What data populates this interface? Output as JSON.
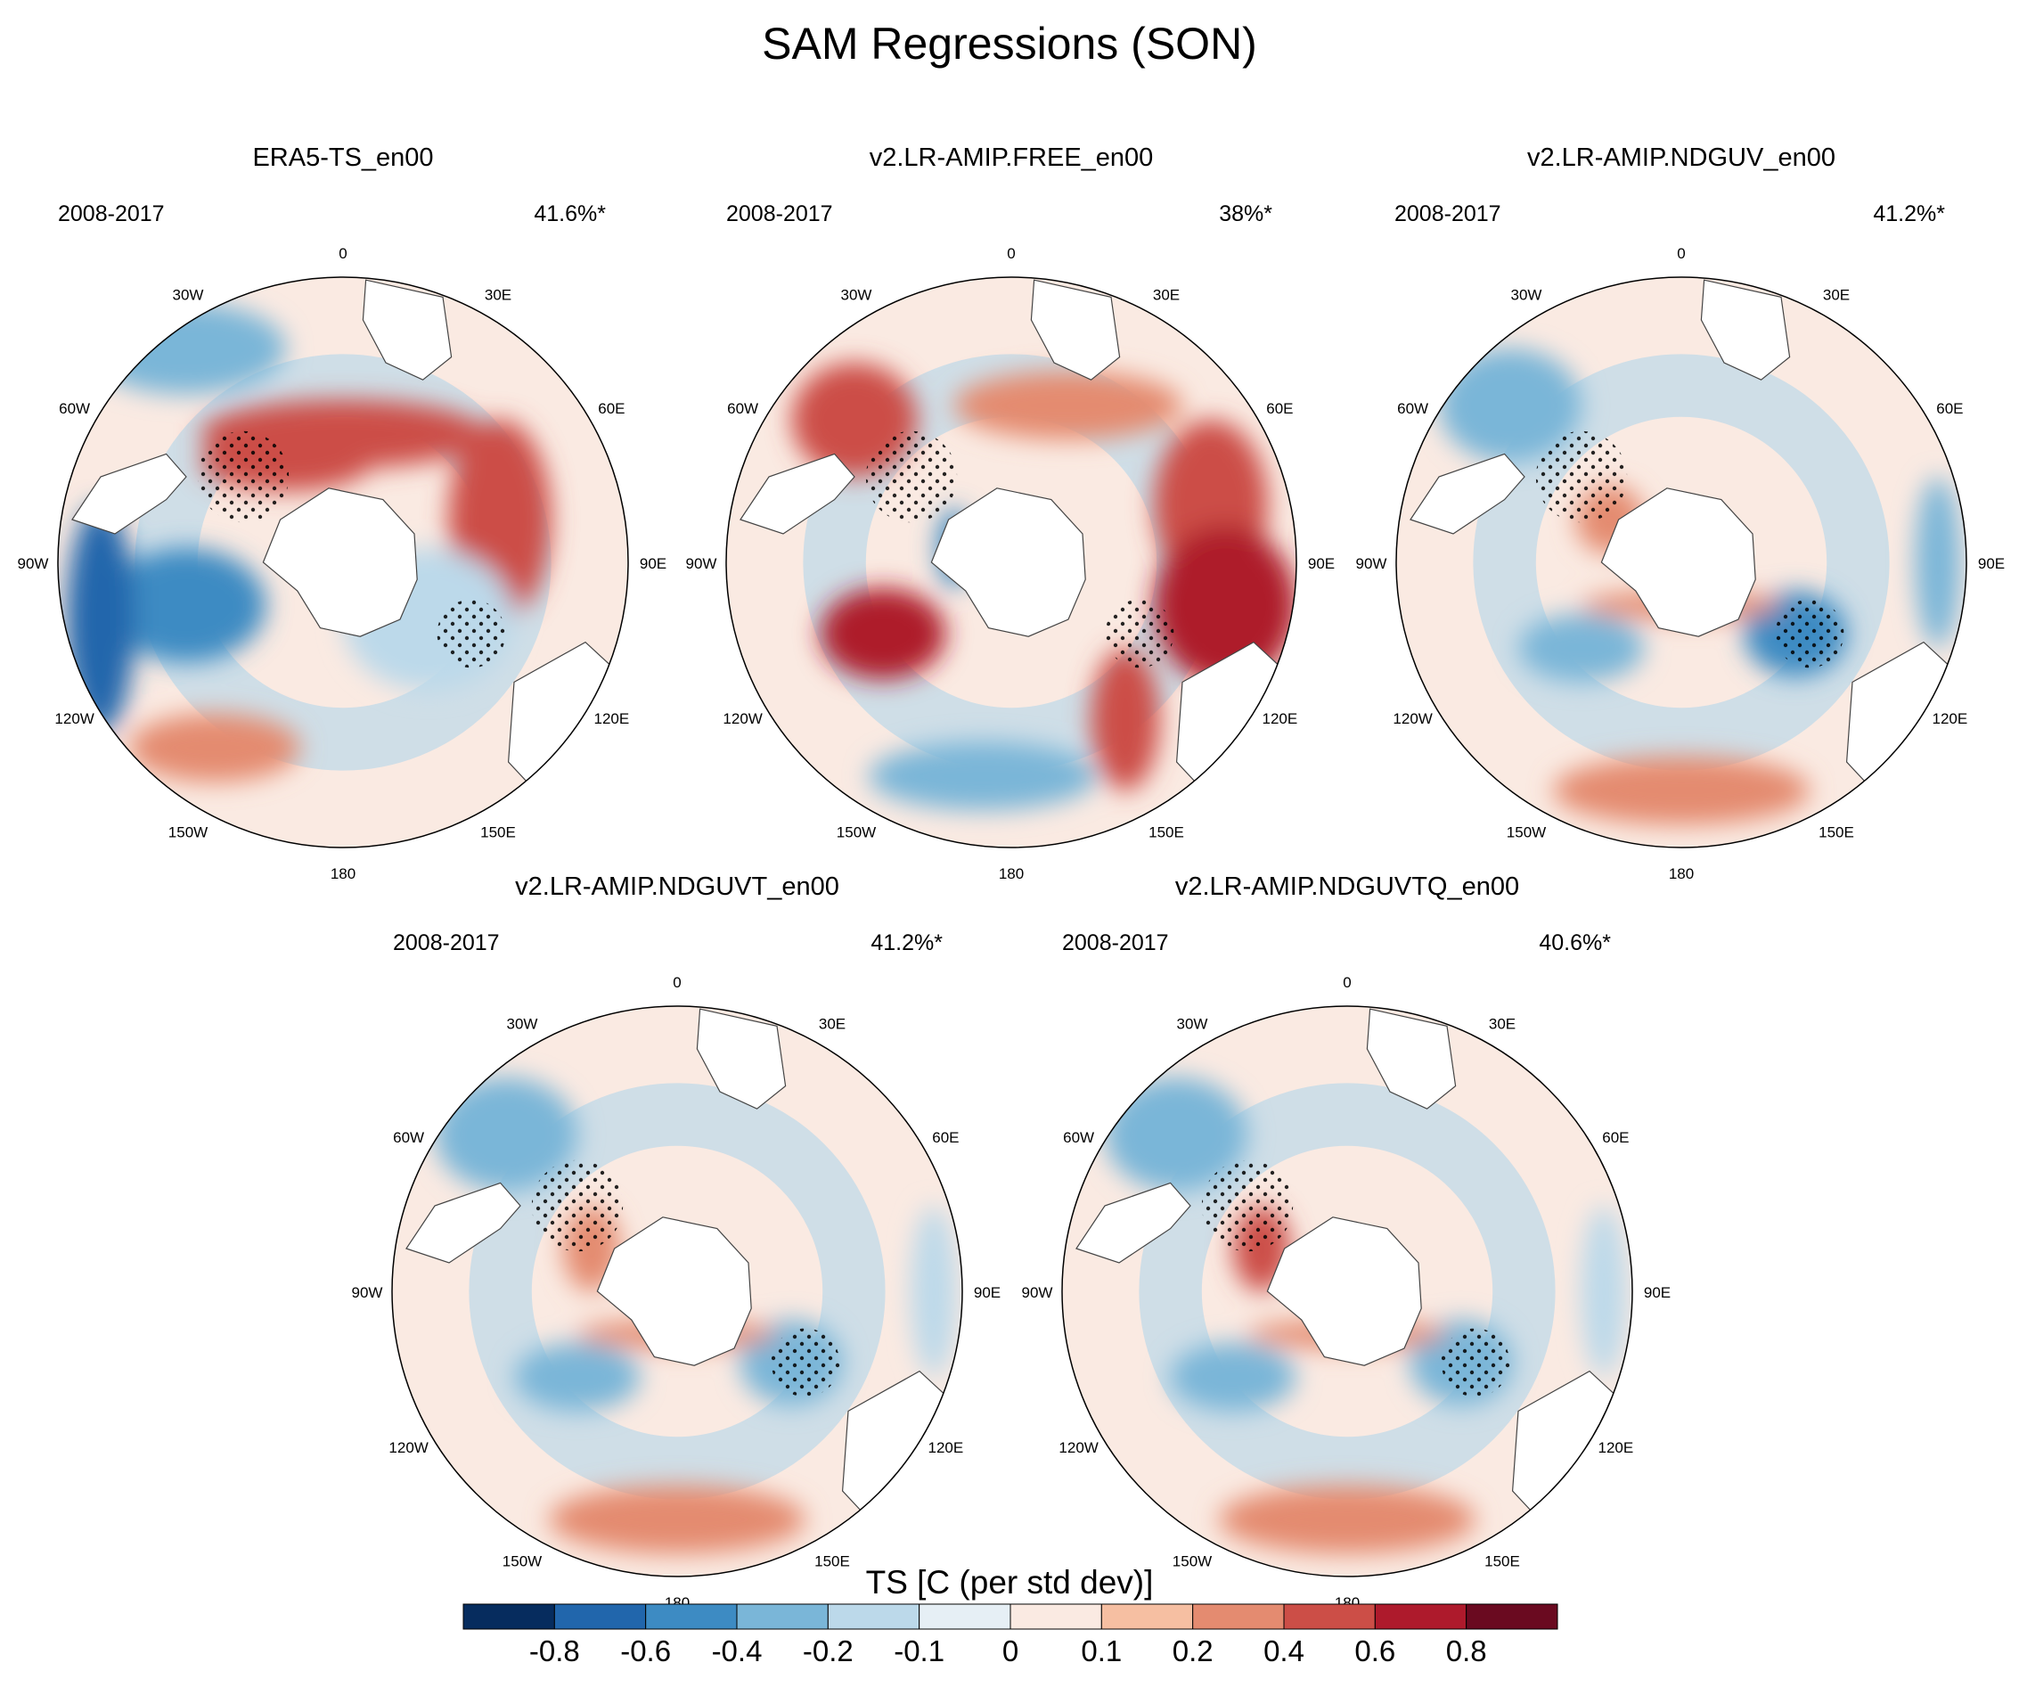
{
  "figure_title": "SAM Regressions (SON)",
  "panel_labels": {
    "lon_labels": [
      "0",
      "30E",
      "60E",
      "90E",
      "120E",
      "150E",
      "180",
      "150W",
      "120W",
      "90W",
      "60W",
      "30W"
    ]
  },
  "chart_data": [
    {
      "type": "heatmap",
      "projection": "south-polar-stereographic",
      "title": "ERA5-TS_en00",
      "period": "2008-2017",
      "variance_explained": "41.6%*",
      "significance_stippling": true
    },
    {
      "type": "heatmap",
      "projection": "south-polar-stereographic",
      "title": "v2.LR-AMIP.FREE_en00",
      "period": "2008-2017",
      "variance_explained": "38%*",
      "significance_stippling": true
    },
    {
      "type": "heatmap",
      "projection": "south-polar-stereographic",
      "title": "v2.LR-AMIP.NDGUV_en00",
      "period": "2008-2017",
      "variance_explained": "41.2%*",
      "significance_stippling": true
    },
    {
      "type": "heatmap",
      "projection": "south-polar-stereographic",
      "title": "v2.LR-AMIP.NDGUVT_en00",
      "period": "2008-2017",
      "variance_explained": "41.2%*",
      "significance_stippling": true
    },
    {
      "type": "heatmap",
      "projection": "south-polar-stereographic",
      "title": "v2.LR-AMIP.NDGUVTQ_en00",
      "period": "2008-2017",
      "variance_explained": "40.6%*",
      "significance_stippling": true
    }
  ],
  "colorbar": {
    "label": "TS [C (per std dev)]",
    "tick_labels": [
      "-0.8",
      "-0.6",
      "-0.4",
      "-0.2",
      "-0.1",
      "0",
      "0.1",
      "0.2",
      "0.4",
      "0.6",
      "0.8"
    ],
    "colors": [
      "#062c5e",
      "#2166ac",
      "#3d8bc3",
      "#7ab6d8",
      "#bcd9ea",
      "#e6eff5",
      "#faeae2",
      "#f6bfa2",
      "#e48b70",
      "#cc4e47",
      "#ae1a2c",
      "#6a0a20"
    ]
  }
}
